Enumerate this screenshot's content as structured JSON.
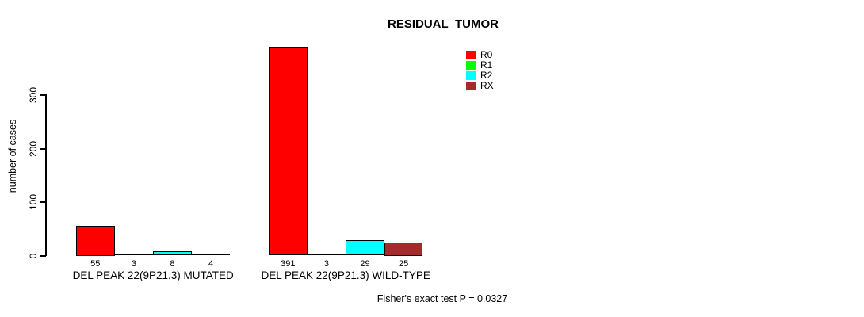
{
  "chart_data": {
    "type": "bar",
    "title": "RESIDUAL_TUMOR",
    "ylabel": "number of cases",
    "xlabel": "",
    "yticks": [
      0,
      100,
      200,
      300
    ],
    "ylim": [
      0,
      395
    ],
    "grid": false,
    "legend_position": "top-right",
    "series": [
      {
        "name": "R0",
        "color": "#ff0000",
        "values": [
          55,
          391
        ]
      },
      {
        "name": "R1",
        "color": "#00ff00",
        "values": [
          3,
          3
        ]
      },
      {
        "name": "R2",
        "color": "#00ffff",
        "values": [
          8,
          29
        ]
      },
      {
        "name": "RX",
        "color": "#a52a2a",
        "values": [
          4,
          25
        ]
      }
    ],
    "categories": [
      "DEL PEAK 22(9P21.3) MUTATED",
      "DEL PEAK 22(9P21.3) WILD-TYPE"
    ],
    "groups": [
      {
        "label": "DEL PEAK 22(9P21.3) MUTATED",
        "values": [
          55,
          3,
          8,
          4
        ],
        "value_labels": [
          "55",
          "3",
          "8",
          "4"
        ]
      },
      {
        "label": "DEL PEAK 22(9P21.3) WILD-TYPE",
        "values": [
          391,
          3,
          29,
          25
        ],
        "value_labels": [
          "391",
          "3",
          "29",
          "25"
        ]
      }
    ],
    "annotation": "Fisher's exact test P = 0.0327"
  }
}
